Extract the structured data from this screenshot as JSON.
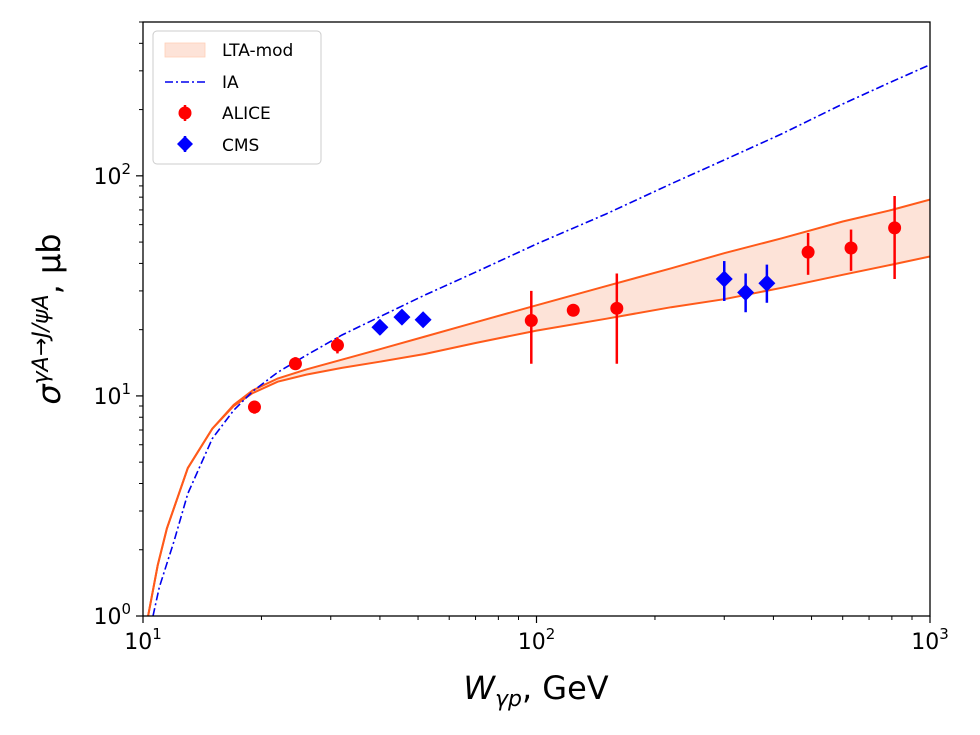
{
  "chart_data": {
    "type": "scatter",
    "xscale": "log",
    "yscale": "log",
    "xlim": [
      10,
      1000
    ],
    "ylim": [
      1,
      500
    ],
    "xlabel": {
      "main": "W",
      "sub": "γp",
      "suffix": ", GeV"
    },
    "ylabel": {
      "main": "σ",
      "sup": "γA→J/ψA",
      "suffix": ", μb"
    },
    "x_ticks": [
      {
        "base": "10",
        "exp": "1",
        "value": 10
      },
      {
        "base": "10",
        "exp": "2",
        "value": 100
      },
      {
        "base": "10",
        "exp": "3",
        "value": 1000
      }
    ],
    "y_ticks": [
      {
        "base": "10",
        "exp": "0",
        "value": 1
      },
      {
        "base": "10",
        "exp": "1",
        "value": 10
      },
      {
        "base": "10",
        "exp": "2",
        "value": 100
      }
    ],
    "legend": {
      "position": "top-left",
      "entries": [
        {
          "label": "LTA-mod",
          "kind": "band",
          "color": "#fde3d8"
        },
        {
          "label": "IA",
          "kind": "dashdot",
          "color": "#0000ee"
        },
        {
          "label": "ALICE",
          "kind": "circle",
          "color": "#ff0000"
        },
        {
          "label": "CMS",
          "kind": "diamond",
          "color": "#0000ff"
        }
      ]
    },
    "series": [
      {
        "name": "LTA-mod",
        "type": "band",
        "color": "#ff5a1a",
        "fill": "#fde3d8",
        "x": [
          10.3,
          10.9,
          11.5,
          13,
          15,
          17,
          19,
          22,
          26,
          32,
          40,
          52,
          70,
          100,
          150,
          220,
          300,
          420,
          600,
          800,
          1000
        ],
        "upper": [
          1.0,
          1.7,
          2.5,
          4.7,
          7.1,
          9.1,
          10.6,
          12.0,
          13.2,
          14.6,
          16.3,
          18.6,
          21.6,
          25.8,
          31.5,
          38.0,
          44.5,
          52.0,
          62.0,
          70.0,
          78.0
        ],
        "lower": [
          1.0,
          1.7,
          2.5,
          4.7,
          7.1,
          9.0,
          10.3,
          11.6,
          12.5,
          13.4,
          14.3,
          15.5,
          17.4,
          19.8,
          22.4,
          25.3,
          27.5,
          31.0,
          35.5,
          39.5,
          43.0
        ]
      },
      {
        "name": "IA",
        "type": "line",
        "style": "dashdot",
        "color": "#0000ee",
        "x": [
          10.6,
          11.0,
          12,
          13,
          15,
          17,
          19,
          22,
          26,
          32,
          40,
          52,
          70,
          100,
          150,
          220,
          300,
          420,
          600,
          800,
          1000
        ],
        "y": [
          1.0,
          1.35,
          2.2,
          3.6,
          6.4,
          8.6,
          10.5,
          12.8,
          15.3,
          18.9,
          22.9,
          28.7,
          36.5,
          49.0,
          67.0,
          92.0,
          118.0,
          155.0,
          212.0,
          268.0,
          320.0
        ]
      },
      {
        "name": "ALICE",
        "type": "scatter",
        "marker": "circle",
        "color": "#ff0000",
        "points": [
          {
            "x": 19.2,
            "y": 8.9,
            "ylo": 8.3,
            "yhi": 9.5
          },
          {
            "x": 24.4,
            "y": 14.0,
            "ylo": 13.2,
            "yhi": 15.0
          },
          {
            "x": 31.2,
            "y": 17.0,
            "ylo": 15.6,
            "yhi": 18.5
          },
          {
            "x": 97.0,
            "y": 22.0,
            "ylo": 14.0,
            "yhi": 30.0
          },
          {
            "x": 124.0,
            "y": 24.5,
            "ylo": 23.0,
            "yhi": 26.0
          },
          {
            "x": 160.0,
            "y": 25.0,
            "ylo": 14.0,
            "yhi": 36.0
          },
          {
            "x": 490.0,
            "y": 45.0,
            "ylo": 35.5,
            "yhi": 55.0
          },
          {
            "x": 630.0,
            "y": 47.0,
            "ylo": 37.0,
            "yhi": 57.0
          },
          {
            "x": 813.0,
            "y": 58.0,
            "ylo": 34.0,
            "yhi": 81.0
          }
        ]
      },
      {
        "name": "CMS",
        "type": "scatter",
        "marker": "diamond",
        "color": "#0000ff",
        "points": [
          {
            "x": 40.0,
            "y": 20.5,
            "ylo": 19.0,
            "yhi": 22.0
          },
          {
            "x": 45.5,
            "y": 22.8,
            "ylo": 21.2,
            "yhi": 24.3
          },
          {
            "x": 51.5,
            "y": 22.2,
            "ylo": 20.8,
            "yhi": 23.7
          },
          {
            "x": 300.0,
            "y": 34.0,
            "ylo": 27.0,
            "yhi": 41.0
          },
          {
            "x": 340.0,
            "y": 29.5,
            "ylo": 24.0,
            "yhi": 36.0
          },
          {
            "x": 385.0,
            "y": 32.5,
            "ylo": 26.5,
            "yhi": 39.5
          }
        ]
      }
    ]
  }
}
